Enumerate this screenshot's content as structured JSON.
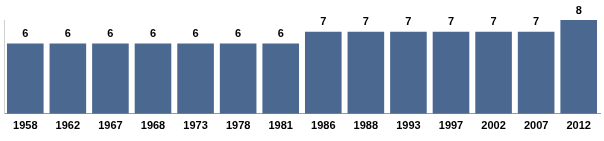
{
  "chart_data": {
    "type": "bar",
    "categories": [
      "1958",
      "1962",
      "1967",
      "1968",
      "1973",
      "1978",
      "1981",
      "1986",
      "1988",
      "1993",
      "1997",
      "2002",
      "2007",
      "2012"
    ],
    "values": [
      6,
      6,
      6,
      6,
      6,
      6,
      6,
      7,
      7,
      7,
      7,
      7,
      7,
      8
    ],
    "color": "#4a6890",
    "ylim": [
      0,
      8
    ],
    "grid": false,
    "data_labels": true,
    "tick_labels": "x"
  }
}
